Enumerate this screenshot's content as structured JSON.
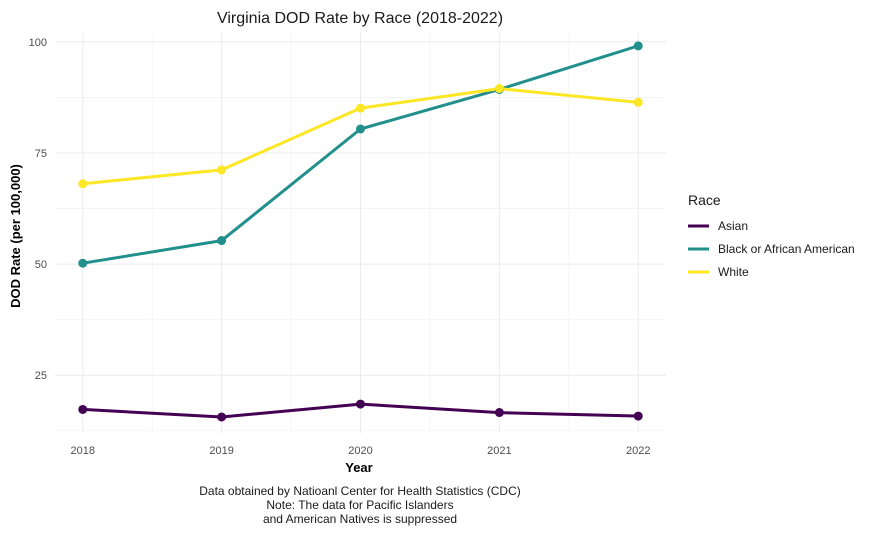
{
  "chart_data": {
    "type": "line",
    "title": "Virginia DOD Rate by Race (2018-2022)",
    "xlabel": "Year",
    "ylabel": "DOD Rate (per 100,000)",
    "x": [
      2018,
      2019,
      2020,
      2021,
      2022
    ],
    "ylim": [
      12,
      102
    ],
    "yticks": [
      25,
      50,
      75,
      100
    ],
    "grid": true,
    "legend": {
      "title": "Race",
      "position": "right"
    },
    "series": [
      {
        "name": "Asian",
        "color": "#440154",
        "values": [
          17.3,
          15.6,
          18.5,
          16.6,
          15.8
        ]
      },
      {
        "name": "Black or African American",
        "color": "#21908C",
        "values": [
          50.2,
          55.3,
          80.4,
          89.3,
          99.1
        ]
      },
      {
        "name": "White",
        "color": "#FDE725",
        "values": [
          68.1,
          71.2,
          85.1,
          89.5,
          86.4
        ]
      }
    ],
    "caption": [
      "Data obtained by Natioanl Center for Health Statistics (CDC)",
      "Note: The data for Pacific Islanders",
      "and American Natives is suppressed"
    ]
  }
}
